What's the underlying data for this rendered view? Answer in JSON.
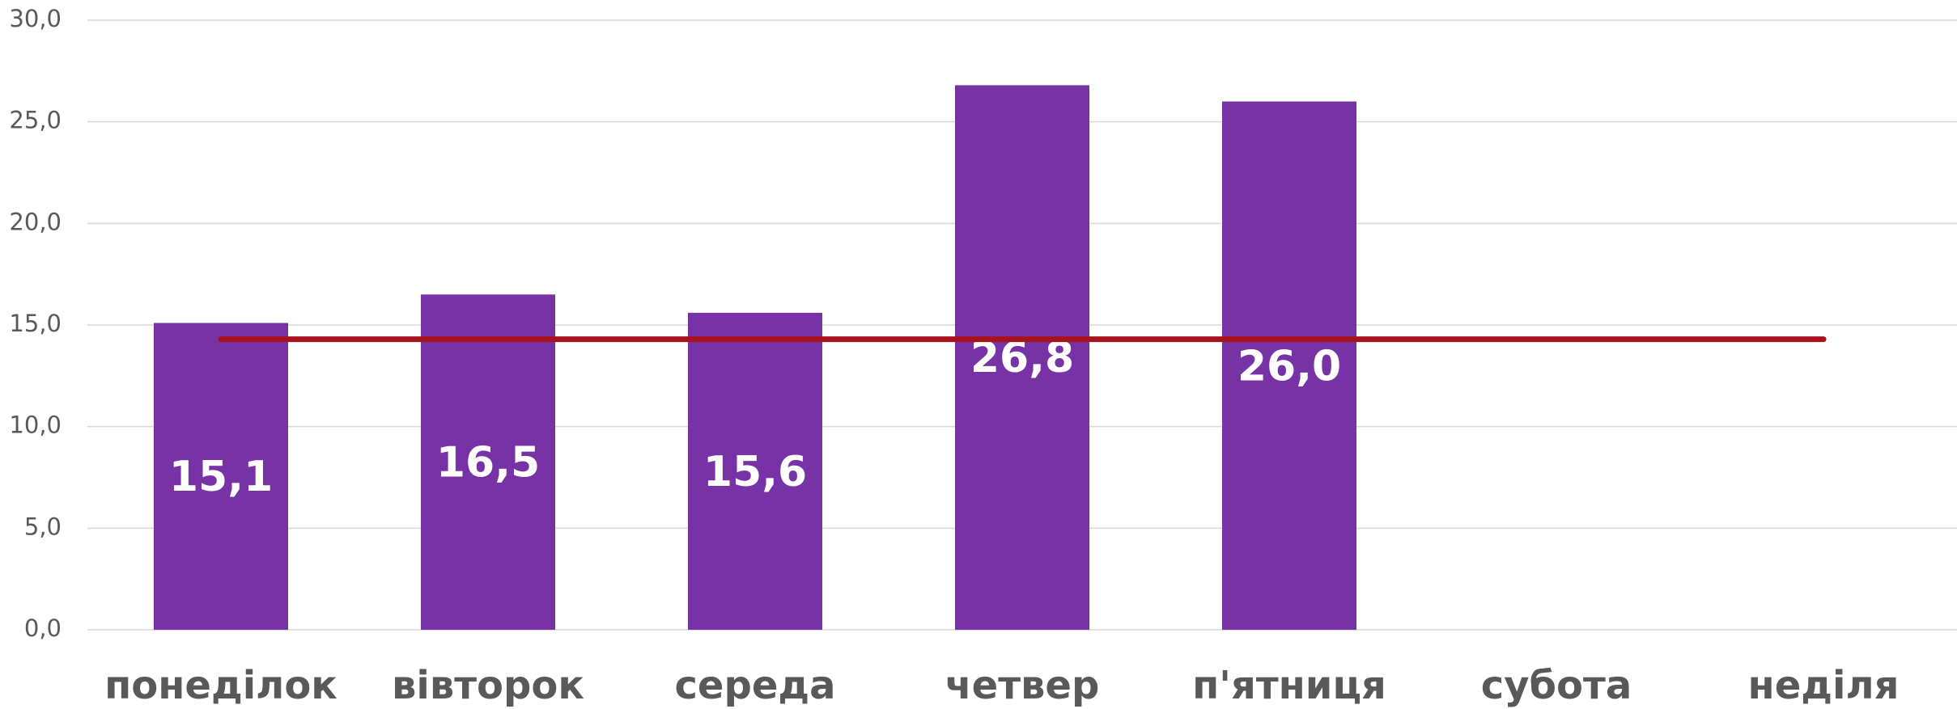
{
  "chart_data": {
    "type": "bar",
    "categories": [
      "понеділок",
      "вівторок",
      "середа",
      "четвер",
      "п'ятниця",
      "субота",
      "неділя"
    ],
    "series": [
      {
        "type": "bar",
        "color": "#7733a6",
        "values": [
          15.1,
          16.5,
          15.6,
          26.8,
          26.0,
          null,
          null
        ],
        "value_labels": [
          "15,1",
          "16,5",
          "15,6",
          "26,8",
          "26,0",
          null,
          null
        ]
      },
      {
        "type": "line",
        "color": "#a8121c",
        "values": [
          14.3,
          14.3,
          14.3,
          14.3,
          14.3,
          14.3,
          14.3
        ]
      }
    ],
    "ylim": [
      0,
      30
    ],
    "yticks": [
      {
        "value": 0,
        "label": "0,0"
      },
      {
        "value": 5,
        "label": "5,0"
      },
      {
        "value": 10,
        "label": "10,0"
      },
      {
        "value": 15,
        "label": "15,0"
      },
      {
        "value": 20,
        "label": "20,0"
      },
      {
        "value": 25,
        "label": "25,0"
      },
      {
        "value": 30,
        "label": "30,0"
      }
    ],
    "grid": true
  }
}
